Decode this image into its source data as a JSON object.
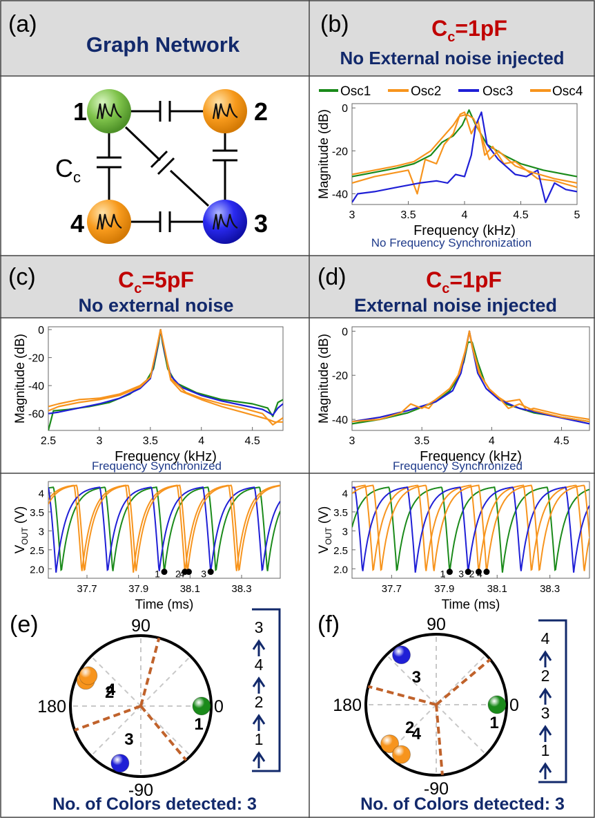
{
  "colors": {
    "osc1": "#1a8a1a",
    "osc2": "#f7941d",
    "osc3": "#1f1fd6",
    "osc4": "#f7941d",
    "title_blue": "#12296b",
    "title_red": "#c00000",
    "header_bg": "#dcdcdc",
    "phase_line": "#c0622b"
  },
  "panels": {
    "a": {
      "label": "(a)",
      "title": "Graph Network",
      "cap_label": "C",
      "cap_sub": "c",
      "nodes": [
        {
          "id": "1"
        },
        {
          "id": "2"
        },
        {
          "id": "3"
        },
        {
          "id": "4"
        }
      ]
    },
    "b": {
      "label": "(b)",
      "cc_prefix": "C",
      "cc_sub": "c",
      "cc_value": "=1pF",
      "subtitle": "No External noise injected",
      "caption": "No Frequency Synchronization"
    },
    "c": {
      "label": "(c)",
      "cc_prefix": "C",
      "cc_sub": "c",
      "cc_value": "=5pF",
      "subtitle": "No external noise",
      "caption": "Frequency Synchronized"
    },
    "d": {
      "label": "(d)",
      "cc_prefix": "C",
      "cc_sub": "c",
      "cc_value": "=1pF",
      "subtitle": "External noise injected",
      "caption": "Frequency Synchronized"
    },
    "e": {
      "label": "(e)",
      "footer": "No. of Colors detected: 3",
      "order": [
        "3",
        "4",
        "2",
        "1"
      ]
    },
    "f": {
      "label": "(f)",
      "footer": "No. of Colors detected: 3",
      "order": [
        "4",
        "2",
        "3",
        "1"
      ]
    }
  },
  "legend": [
    "Osc1",
    "Osc2",
    "Osc3",
    "Osc4"
  ],
  "phase_axis_labels": {
    "top": "90",
    "left": "180",
    "right": "0",
    "bottom": "-90"
  },
  "chart_data": [
    {
      "id": "b",
      "type": "line",
      "xlabel": "Frequency (kHz)",
      "ylabel": "Magnitude (dB)",
      "xlim": [
        3,
        5
      ],
      "ylim": [
        -45,
        2
      ],
      "xticks": [
        3,
        3.5,
        4,
        4.5,
        5
      ],
      "xtick_labels": [
        "3",
        "3.5",
        "4",
        "4.5",
        "5"
      ],
      "yticks": [
        0,
        -20,
        -40
      ],
      "ytick_labels": [
        "0",
        "-20",
        "-40"
      ],
      "series": [
        {
          "name": "Osc1",
          "color": "#1a8a1a",
          "x": [
            3,
            3.2,
            3.4,
            3.55,
            3.7,
            3.8,
            3.9,
            3.98,
            4.04,
            4.1,
            4.2,
            4.35,
            4.5,
            4.7,
            5
          ],
          "y": [
            -32,
            -30,
            -28,
            -26,
            -22,
            -16,
            -13,
            -8,
            -1,
            -8,
            -17,
            -22,
            -26,
            -29,
            -32
          ]
        },
        {
          "name": "Osc2",
          "color": "#f7941d",
          "x": [
            3,
            3.2,
            3.4,
            3.5,
            3.58,
            3.65,
            3.75,
            3.82,
            3.9,
            3.96,
            4.0,
            4.06,
            4.12,
            4.18,
            4.25,
            4.35,
            4.45,
            4.55,
            4.65,
            4.8,
            5
          ],
          "y": [
            -35,
            -32,
            -30,
            -29,
            -40,
            -24,
            -26,
            -17,
            -12,
            -3,
            -2,
            -12,
            -6,
            -22,
            -18,
            -26,
            -25,
            -29,
            -33,
            -34,
            -37
          ]
        },
        {
          "name": "Osc3",
          "color": "#1f1fd6",
          "x": [
            3,
            3.05,
            3.2,
            3.4,
            3.6,
            3.75,
            3.85,
            3.92,
            4.0,
            4.06,
            4.1,
            4.15,
            4.2,
            4.3,
            4.45,
            4.55,
            4.65,
            4.72,
            4.8,
            4.9,
            5
          ],
          "y": [
            -44,
            -40,
            -39,
            -37,
            -35,
            -34,
            -35,
            -31,
            -32,
            -22,
            -8,
            -2,
            -17,
            -24,
            -31,
            -32,
            -29,
            -44,
            -35,
            -38,
            -39
          ]
        },
        {
          "name": "Osc4",
          "color": "#f7941d",
          "x": [
            3,
            3.2,
            3.4,
            3.55,
            3.7,
            3.8,
            3.9,
            3.95,
            4.02,
            4.08,
            4.15,
            4.22,
            4.3,
            4.45,
            4.6,
            4.8,
            5
          ],
          "y": [
            -31,
            -29,
            -27,
            -25,
            -20,
            -14,
            -8,
            -4,
            -3,
            -5,
            -13,
            -24,
            -20,
            -27,
            -30,
            -33,
            -35
          ]
        }
      ]
    },
    {
      "id": "c",
      "type": "line",
      "xlabel": "Frequency (kHz)",
      "ylabel": "Magnitude (dB)",
      "xlim": [
        2.5,
        4.8
      ],
      "ylim": [
        -72,
        2
      ],
      "xticks": [
        2.5,
        3,
        3.5,
        4,
        4.5
      ],
      "xtick_labels": [
        "2.5",
        "3",
        "3.5",
        "4",
        "4.5"
      ],
      "yticks": [
        0,
        -20,
        -40,
        -60
      ],
      "ytick_labels": [
        "0",
        "-20",
        "-40",
        "-60"
      ],
      "series": [
        {
          "name": "Osc1",
          "color": "#1a8a1a",
          "x": [
            2.5,
            2.55,
            2.7,
            2.9,
            3.1,
            3.3,
            3.45,
            3.53,
            3.58,
            3.6,
            3.62,
            3.67,
            3.75,
            3.95,
            4.2,
            4.5,
            4.65,
            4.7,
            4.75,
            4.8
          ],
          "y": [
            -72,
            -58,
            -57,
            -55,
            -52,
            -46,
            -38,
            -28,
            -10,
            0,
            -10,
            -28,
            -38,
            -45,
            -50,
            -53,
            -56,
            -62,
            -52,
            -50
          ]
        },
        {
          "name": "Osc2",
          "color": "#f7941d",
          "x": [
            2.5,
            2.6,
            2.8,
            3.0,
            3.2,
            3.4,
            3.5,
            3.56,
            3.6,
            3.64,
            3.7,
            3.8,
            4.0,
            4.2,
            4.4,
            4.55,
            4.65,
            4.72,
            4.8
          ],
          "y": [
            -55,
            -53,
            -50,
            -49,
            -46,
            -40,
            -34,
            -15,
            0,
            -15,
            -36,
            -44,
            -50,
            -55,
            -59,
            -62,
            -64,
            -66,
            -66
          ]
        },
        {
          "name": "Osc3",
          "color": "#1f1fd6",
          "x": [
            2.5,
            2.6,
            2.8,
            3.0,
            3.2,
            3.4,
            3.5,
            3.56,
            3.6,
            3.64,
            3.7,
            3.8,
            4.0,
            4.2,
            4.4,
            4.6,
            4.7,
            4.75,
            4.8
          ],
          "y": [
            -60,
            -59,
            -56,
            -53,
            -49,
            -42,
            -35,
            -16,
            0,
            -16,
            -33,
            -41,
            -47,
            -51,
            -54,
            -57,
            -61,
            -56,
            -53
          ]
        },
        {
          "name": "Osc4",
          "color": "#f7941d",
          "x": [
            2.5,
            2.6,
            2.8,
            3.0,
            3.2,
            3.4,
            3.5,
            3.56,
            3.6,
            3.64,
            3.7,
            3.85,
            4.0,
            4.2,
            4.4,
            4.6,
            4.7,
            4.8
          ],
          "y": [
            -58,
            -55,
            -52,
            -50,
            -47,
            -41,
            -34,
            -14,
            0,
            -14,
            -35,
            -45,
            -49,
            -53,
            -56,
            -60,
            -68,
            -63
          ]
        }
      ]
    },
    {
      "id": "d",
      "type": "line",
      "xlabel": "Frequency (kHz)",
      "ylabel": "Magnitude (dB)",
      "xlim": [
        3,
        4.7
      ],
      "ylim": [
        -45,
        2
      ],
      "xticks": [
        3,
        3.5,
        4,
        4.5
      ],
      "xtick_labels": [
        "3",
        "3.5",
        "4",
        "4.5"
      ],
      "yticks": [
        0,
        -20,
        -40
      ],
      "ytick_labels": [
        "0",
        "-20",
        "-40"
      ],
      "series": [
        {
          "name": "Osc1",
          "color": "#1a8a1a",
          "x": [
            3,
            3.2,
            3.4,
            3.6,
            3.7,
            3.75,
            3.8,
            3.83,
            3.86,
            3.9,
            3.95,
            4.0,
            4.1,
            4.3,
            4.5,
            4.7
          ],
          "y": [
            -42,
            -40,
            -37,
            -32,
            -27,
            -22,
            -14,
            -5,
            -5,
            -14,
            -23,
            -28,
            -33,
            -37,
            -39,
            -41
          ]
        },
        {
          "name": "Osc2",
          "color": "#f7941d",
          "x": [
            3,
            3.2,
            3.4,
            3.5,
            3.55,
            3.6,
            3.7,
            3.76,
            3.81,
            3.84,
            3.87,
            3.92,
            4.0,
            4.1,
            4.2,
            4.25,
            4.3,
            4.5,
            4.7
          ],
          "y": [
            -41,
            -39,
            -36,
            -34,
            -35,
            -31,
            -26,
            -20,
            -9,
            0,
            -9,
            -20,
            -28,
            -32,
            -31,
            -36,
            -35,
            -38,
            -40
          ]
        },
        {
          "name": "Osc3",
          "color": "#1f1fd6",
          "x": [
            3,
            3.2,
            3.4,
            3.6,
            3.72,
            3.78,
            3.82,
            3.84,
            3.86,
            3.9,
            3.96,
            4.05,
            4.2,
            4.4,
            4.7
          ],
          "y": [
            -41,
            -39,
            -36,
            -32,
            -27,
            -19,
            -7,
            0,
            -7,
            -19,
            -26,
            -31,
            -35,
            -38,
            -42
          ]
        },
        {
          "name": "Osc4",
          "color": "#f7941d",
          "x": [
            3,
            3.2,
            3.35,
            3.42,
            3.5,
            3.6,
            3.7,
            3.77,
            3.82,
            3.84,
            3.86,
            3.91,
            3.98,
            4.05,
            4.12,
            4.2,
            4.3,
            4.5,
            4.7
          ],
          "y": [
            -41,
            -40,
            -37,
            -33,
            -35,
            -31,
            -26,
            -19,
            -7,
            0,
            -7,
            -19,
            -26,
            -30,
            -35,
            -33,
            -36,
            -39,
            -41
          ]
        }
      ]
    },
    {
      "id": "e_time",
      "type": "line",
      "xlabel": "Time (ms)",
      "ylabel_main": "V",
      "ylabel_sub": "OUT",
      "ylabel_unit": " (V)",
      "xlim": [
        37.55,
        38.45
      ],
      "ylim": [
        1.75,
        4.3
      ],
      "xticks": [
        37.7,
        37.9,
        38.1,
        38.3
      ],
      "xtick_labels": [
        "37.7",
        "37.9",
        "38.1",
        "38.3"
      ],
      "yticks": [
        4,
        3.5,
        3,
        2.5,
        2
      ],
      "ytick_labels": [
        "4",
        "3.5",
        "3",
        "2.5",
        "2.0"
      ],
      "period": 0.2,
      "series": [
        {
          "name": "Osc1",
          "color": "#1a8a1a",
          "minima": [
            37.6,
            37.8,
            38.0,
            38.2,
            38.4
          ],
          "vmax": 4.15,
          "vmin": 1.9
        },
        {
          "name": "Osc2",
          "color": "#f7941d",
          "minima": [
            37.68,
            37.88,
            38.08,
            38.28
          ],
          "vmax": 4.2,
          "vmin": 1.9
        },
        {
          "name": "Osc3",
          "color": "#1f1fd6",
          "minima": [
            37.58,
            37.78,
            37.98,
            38.18,
            38.38
          ],
          "vmax": 4.15,
          "vmin": 1.9
        },
        {
          "name": "Osc4",
          "color": "#f7941d",
          "minima": [
            37.69,
            37.89,
            38.09,
            38.29
          ],
          "vmax": 4.2,
          "vmin": 1.9
        }
      ],
      "markers": [
        {
          "label": "1",
          "t": 38.0
        },
        {
          "label": "2",
          "t": 38.08
        },
        {
          "label": "4",
          "t": 38.095
        },
        {
          "label": "3",
          "t": 38.18
        }
      ]
    },
    {
      "id": "f_time",
      "type": "line",
      "xlabel": "Time (ms)",
      "ylabel_main": "V",
      "ylabel_sub": "OUT",
      "ylabel_unit": " (V)",
      "xlim": [
        37.55,
        38.45
      ],
      "ylim": [
        1.75,
        4.3
      ],
      "xticks": [
        37.7,
        37.9,
        38.1,
        38.3
      ],
      "xtick_labels": [
        "37.7",
        "37.9",
        "38.1",
        "38.3"
      ],
      "yticks": [
        4,
        3.5,
        3,
        2.5,
        2
      ],
      "ytick_labels": [
        "4",
        "3.5",
        "3",
        "2.5",
        "2.0"
      ],
      "period": 0.2,
      "series": [
        {
          "name": "Osc1",
          "color": "#1a8a1a",
          "minima": [
            37.72,
            37.92,
            38.12,
            38.32
          ],
          "vmax": 4.15,
          "vmin": 1.9
        },
        {
          "name": "Osc2",
          "color": "#f7941d",
          "minima": [
            37.63,
            37.83,
            38.03,
            38.23,
            38.43
          ],
          "vmax": 4.2,
          "vmin": 1.9
        },
        {
          "name": "Osc3",
          "color": "#1f1fd6",
          "minima": [
            37.59,
            37.79,
            37.99,
            38.19,
            38.39
          ],
          "vmax": 4.15,
          "vmin": 1.9
        },
        {
          "name": "Osc4",
          "color": "#f7941d",
          "minima": [
            37.66,
            37.86,
            38.06,
            38.26
          ],
          "vmax": 4.2,
          "vmin": 1.9
        }
      ],
      "markers": [
        {
          "label": "1",
          "t": 37.92
        },
        {
          "label": "3",
          "t": 37.99
        },
        {
          "label": "2",
          "t": 38.03
        },
        {
          "label": "4",
          "t": 38.06
        }
      ]
    },
    {
      "id": "e_phase",
      "type": "scatter",
      "points": [
        {
          "label": "1",
          "angle": 0,
          "color": "#1a8a1a"
        },
        {
          "label": "2",
          "angle": 155,
          "color": "#f7941d"
        },
        {
          "label": "4",
          "angle": 150,
          "color": "#f7941d"
        },
        {
          "label": "3",
          "angle": 250,
          "color": "#1f1fd6"
        }
      ],
      "dividers": [
        75,
        200,
        310
      ]
    },
    {
      "id": "f_phase",
      "type": "scatter",
      "points": [
        {
          "label": "1",
          "angle": 0,
          "color": "#1a8a1a"
        },
        {
          "label": "3",
          "angle": 125,
          "color": "#1f1fd6"
        },
        {
          "label": "2",
          "angle": 220,
          "color": "#f7941d"
        },
        {
          "label": "4",
          "angle": 235,
          "color": "#f7941d"
        }
      ],
      "dividers": [
        40,
        165,
        275
      ]
    }
  ]
}
